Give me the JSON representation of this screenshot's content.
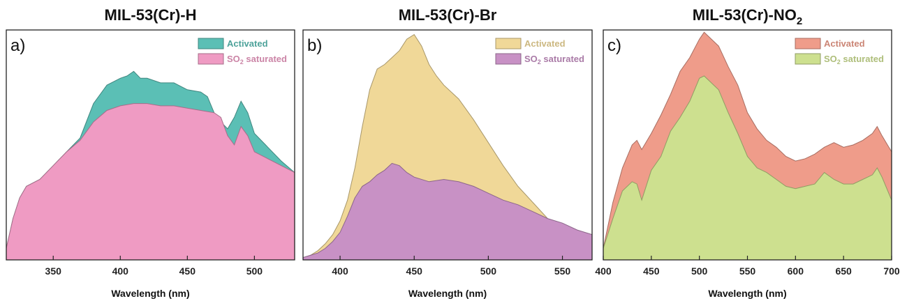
{
  "chart_data": [
    {
      "type": "area",
      "panel_label": "a)",
      "title": "MIL-53(Cr)-H",
      "xlabel": "Wavelength (nm)",
      "ylabel": "",
      "xlim": [
        315,
        530
      ],
      "ylim": [
        0,
        1
      ],
      "xticks": [
        350,
        400,
        450,
        500
      ],
      "legend_position": "top-right",
      "series": [
        {
          "name": "Activated",
          "color": "#5bbfb5",
          "x": [
            315,
            320,
            325,
            330,
            340,
            350,
            360,
            370,
            380,
            390,
            400,
            405,
            410,
            415,
            420,
            430,
            440,
            450,
            460,
            465,
            470,
            475,
            480,
            485,
            490,
            495,
            500,
            510,
            520,
            530
          ],
          "y": [
            0.05,
            0.18,
            0.27,
            0.32,
            0.35,
            0.41,
            0.47,
            0.53,
            0.68,
            0.76,
            0.79,
            0.8,
            0.82,
            0.79,
            0.79,
            0.77,
            0.77,
            0.74,
            0.73,
            0.71,
            0.64,
            0.6,
            0.57,
            0.62,
            0.69,
            0.64,
            0.55,
            0.49,
            0.43,
            0.38
          ]
        },
        {
          "name": "SO<sub>2</sub> saturated",
          "name_text": "SO2 saturated",
          "color": "#ef9bc3",
          "x": [
            315,
            320,
            325,
            330,
            340,
            350,
            360,
            370,
            380,
            390,
            400,
            410,
            420,
            430,
            440,
            450,
            460,
            470,
            475,
            480,
            485,
            490,
            495,
            500,
            510,
            520,
            530
          ],
          "y": [
            0.05,
            0.18,
            0.27,
            0.32,
            0.35,
            0.41,
            0.47,
            0.52,
            0.6,
            0.65,
            0.67,
            0.68,
            0.68,
            0.67,
            0.67,
            0.66,
            0.65,
            0.64,
            0.62,
            0.54,
            0.5,
            0.58,
            0.54,
            0.47,
            0.44,
            0.41,
            0.38
          ]
        }
      ]
    },
    {
      "type": "area",
      "panel_label": "b)",
      "title": "MIL-53(Cr)-Br",
      "xlabel": "Wavelength (nm)",
      "ylabel": "",
      "xlim": [
        375,
        570
      ],
      "ylim": [
        0,
        1
      ],
      "xticks": [
        400,
        450,
        500,
        550
      ],
      "legend_position": "top-right",
      "series": [
        {
          "name": "Activated",
          "color": "#f0d898",
          "x": [
            375,
            380,
            385,
            390,
            395,
            400,
            405,
            410,
            415,
            420,
            425,
            430,
            435,
            440,
            445,
            450,
            455,
            460,
            465,
            470,
            480,
            490,
            500,
            510,
            520,
            530,
            540,
            550,
            560,
            570
          ],
          "y": [
            0.01,
            0.02,
            0.04,
            0.07,
            0.11,
            0.17,
            0.26,
            0.4,
            0.58,
            0.74,
            0.83,
            0.85,
            0.88,
            0.91,
            0.96,
            0.98,
            0.93,
            0.85,
            0.8,
            0.76,
            0.7,
            0.61,
            0.51,
            0.41,
            0.32,
            0.25,
            0.18,
            0.13,
            0.1,
            0.09
          ]
        },
        {
          "name": "SO<sub>2</sub> saturated",
          "name_text": "SO2 saturated",
          "color": "#c891c5",
          "x": [
            375,
            380,
            385,
            390,
            395,
            400,
            405,
            410,
            415,
            420,
            425,
            430,
            435,
            440,
            445,
            450,
            460,
            470,
            480,
            490,
            500,
            510,
            520,
            530,
            540,
            550,
            560,
            570
          ],
          "y": [
            0.01,
            0.02,
            0.03,
            0.05,
            0.08,
            0.12,
            0.19,
            0.27,
            0.32,
            0.34,
            0.37,
            0.39,
            0.42,
            0.41,
            0.38,
            0.36,
            0.34,
            0.35,
            0.34,
            0.32,
            0.29,
            0.26,
            0.24,
            0.21,
            0.18,
            0.16,
            0.13,
            0.11
          ]
        }
      ]
    },
    {
      "type": "area",
      "panel_label": "c)",
      "title": "MIL-53(Cr)-NO",
      "title_subscript": "2",
      "xlabel": "Wavelength (nm)",
      "ylabel": "",
      "xlim": [
        400,
        700
      ],
      "ylim": [
        0,
        1
      ],
      "xticks": [
        400,
        450,
        500,
        550,
        600,
        650,
        700
      ],
      "legend_position": "top-right",
      "series": [
        {
          "name": "Activated",
          "color": "#ef9c8a",
          "x": [
            400,
            410,
            420,
            430,
            435,
            440,
            450,
            460,
            470,
            480,
            490,
            500,
            505,
            510,
            520,
            530,
            540,
            550,
            560,
            570,
            580,
            590,
            600,
            610,
            620,
            630,
            640,
            650,
            660,
            670,
            680,
            685,
            690,
            700
          ],
          "y": [
            0.05,
            0.25,
            0.4,
            0.5,
            0.52,
            0.48,
            0.55,
            0.63,
            0.72,
            0.82,
            0.88,
            0.96,
            0.99,
            0.97,
            0.93,
            0.84,
            0.76,
            0.64,
            0.57,
            0.52,
            0.49,
            0.45,
            0.43,
            0.44,
            0.46,
            0.49,
            0.51,
            0.49,
            0.5,
            0.52,
            0.55,
            0.58,
            0.54,
            0.47
          ]
        },
        {
          "name": "SO<sub>2</sub> saturated",
          "name_text": "SO2 saturated",
          "color": "#cde08f",
          "x": [
            400,
            410,
            420,
            430,
            435,
            440,
            450,
            460,
            470,
            480,
            490,
            500,
            505,
            510,
            520,
            530,
            540,
            550,
            560,
            570,
            580,
            590,
            600,
            610,
            620,
            630,
            640,
            650,
            660,
            670,
            680,
            685,
            690,
            700
          ],
          "y": [
            0.05,
            0.18,
            0.3,
            0.34,
            0.33,
            0.26,
            0.39,
            0.45,
            0.56,
            0.62,
            0.69,
            0.79,
            0.8,
            0.78,
            0.74,
            0.64,
            0.55,
            0.45,
            0.4,
            0.38,
            0.35,
            0.32,
            0.31,
            0.32,
            0.33,
            0.38,
            0.35,
            0.33,
            0.33,
            0.35,
            0.37,
            0.4,
            0.36,
            0.26
          ]
        }
      ]
    }
  ]
}
